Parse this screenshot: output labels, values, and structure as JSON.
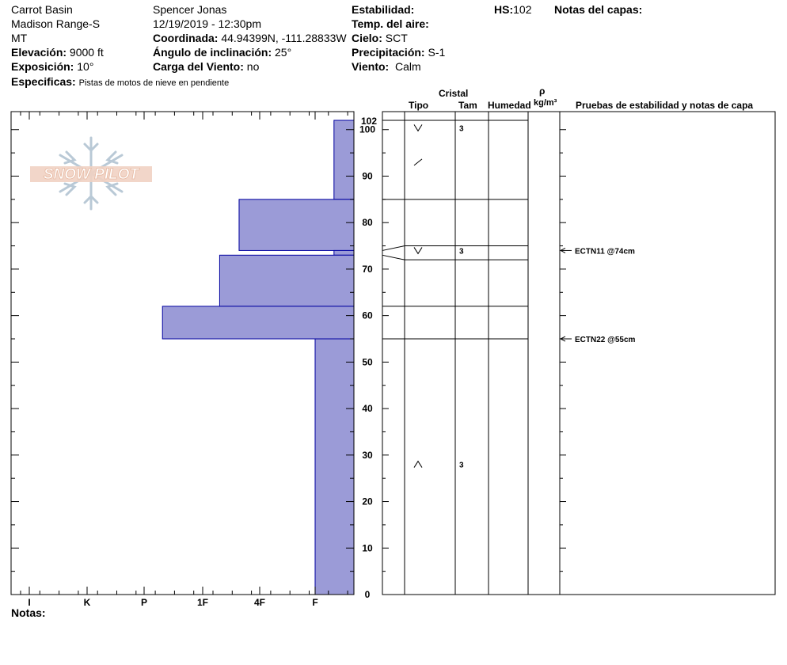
{
  "header": {
    "location": "Carrot Basin",
    "range": "Madison Range-S",
    "state": "MT",
    "elevation_label": "Elevación:",
    "elevation_value": "9000 ft",
    "aspect_label": "Exposición:",
    "aspect_value": "10°",
    "specifics_label": "Especificas:",
    "specifics_value": "Pistas de motos de nieve en pendiente",
    "observer": "Spencer Jonas",
    "datetime": "12/19/2019 - 12:30pm",
    "coord_label": "Coordinada:",
    "coord_value": "44.94399N, -111.28833W",
    "slope_label": "Ángulo de inclinación:",
    "slope_value": "25°",
    "wind_load_label": "Carga del Viento:",
    "wind_load_value": "no",
    "stability_label": "Estabilidad:",
    "air_temp_label": "Temp. del aire:",
    "sky_label": "Cielo:",
    "sky_value": "SCT",
    "precip_label": "Precipitación:",
    "precip_value": "S-1",
    "wind_label": "Viento:",
    "wind_value": "Calm",
    "hs_label": "HS:",
    "hs_value": "102",
    "layer_notes_label": "Notas del capas:",
    "notes_label": "Notas:"
  },
  "logo": {
    "text": "SNOW PILOT"
  },
  "columns": {
    "crystal": "Cristal",
    "type": "Tipo",
    "size": "Tam",
    "moisture": "Humedad",
    "rho": "ρ",
    "density_unit": "kg/m³",
    "tests": "Pruebas de estabilidad y notas de capa"
  },
  "chart_data": {
    "type": "bar",
    "orientation": "horizontal",
    "x_categories": [
      "I",
      "K",
      "P",
      "1F",
      "4F",
      "F"
    ],
    "y_axis": {
      "min": 0,
      "max": 102,
      "ticks": [
        0,
        10,
        20,
        30,
        40,
        50,
        60,
        70,
        80,
        90,
        100
      ],
      "top_label": "102"
    },
    "hand_hardness_layers": [
      {
        "top": 102,
        "bottom": 85,
        "hardness": "F+"
      },
      {
        "top": 85,
        "bottom": 74,
        "hardness": "4F"
      },
      {
        "top": 74,
        "bottom": 73,
        "hardness": "F+"
      },
      {
        "top": 73,
        "bottom": 62,
        "hardness": "4F-"
      },
      {
        "top": 62,
        "bottom": 55,
        "hardness": "1F"
      },
      {
        "top": 55,
        "bottom": 0,
        "hardness": "F"
      }
    ],
    "hardness_positions": {
      "F": 1.0,
      "F+": 0.67,
      "4F-": 2.67,
      "4F": 2.33,
      "1F": 3.67
    },
    "layer_boundaries": [
      102,
      85,
      75,
      72,
      62,
      55
    ],
    "grain_symbols": [
      {
        "depth": 102,
        "symbol": "V",
        "size": "3"
      },
      {
        "depth": 93,
        "symbol": "/",
        "size": ""
      },
      {
        "depth": 74,
        "symbol": "V",
        "size": "3"
      },
      {
        "depth": 28,
        "symbol": "^",
        "size": "3"
      }
    ],
    "stability_tests": [
      {
        "depth": 74,
        "label": "ECTN11 @74cm"
      },
      {
        "depth": 55,
        "label": "ECTN22 @55cm"
      }
    ],
    "colors": {
      "bar_fill": "#9b9bd7",
      "bar_stroke": "#0000a0"
    }
  }
}
